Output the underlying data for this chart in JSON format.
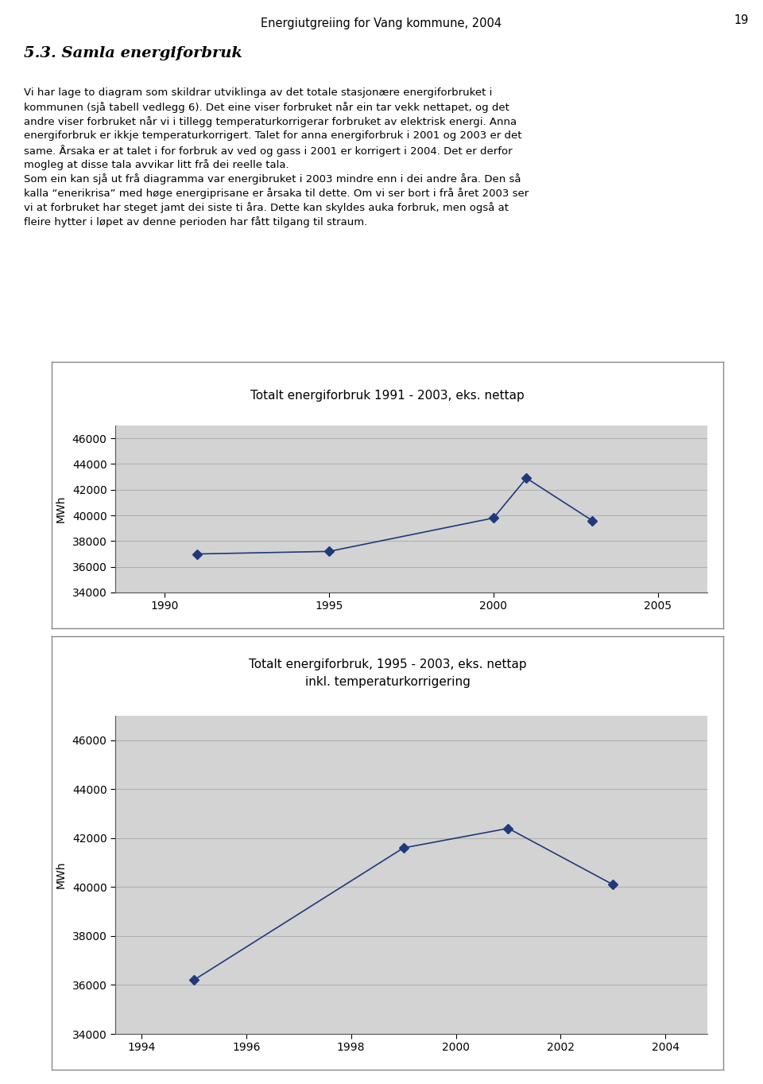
{
  "page_title": "Energiutgreiing for Vang kommune, 2004",
  "page_number": "19",
  "section_title": "5.3. Samla energiforbruk",
  "body_lines": [
    "Vi har lage to diagram som skildrar utviklinga av det totale stasjonære energiforbruket i",
    "kommunen (sjå tabell vedlegg 6). Det eine viser forbruket når ein tar vekk nettapet, og det",
    "andre viser forbruket når vi i tillegg temperaturkorrigerar forbruket av elektrisk energi. Anna",
    "energiforbruk er ikkje temperaturkorrigert. Talet for anna energiforbruk i 2001 og 2003 er det",
    "same. Årsaka er at talet i for forbruk av ved og gass i 2001 er korrigert i 2004. Det er derfor",
    "mogleg at disse tala avvikar litt frå dei reelle tala.",
    "Som ein kan sjå ut frå diagramma var energibruket i 2003 mindre enn i dei andre åra. Den så",
    "kalla “enerikrisa” med høge energiprisane er årsaka til dette. Om vi ser bort i frå året 2003 ser",
    "vi at forbruket har steget jamt dei siste ti åra. Dette kan skyldes auka forbruk, men også at",
    "fleire hytter i løpet av denne perioden har fått tilgang til straum."
  ],
  "chart1": {
    "title": "Totalt energiforbruk 1991 - 2003, eks. nettap",
    "ylabel": "MWh",
    "xlim": [
      1988.5,
      2006.5
    ],
    "ylim": [
      34000,
      47000
    ],
    "yticks": [
      34000,
      36000,
      38000,
      40000,
      42000,
      44000,
      46000
    ],
    "xticks": [
      1990,
      1995,
      2000,
      2005
    ],
    "x": [
      1991,
      1995,
      2000,
      2001,
      2003
    ],
    "y": [
      37000,
      37200,
      39800,
      42900,
      39600
    ],
    "line_color": "#1f3a7a",
    "marker": "D",
    "marker_size": 6,
    "bg_color": "#d3d3d3"
  },
  "chart2": {
    "title1": "Totalt energiforbruk, 1995 - 2003, eks. nettap",
    "title2": "inkl. temperaturkorrigering",
    "ylabel": "MWh",
    "xlim": [
      1993.5,
      2004.8
    ],
    "ylim": [
      34000,
      47000
    ],
    "yticks": [
      34000,
      36000,
      38000,
      40000,
      42000,
      44000,
      46000
    ],
    "xticks": [
      1994,
      1996,
      1998,
      2000,
      2002,
      2004
    ],
    "x": [
      1995,
      1999,
      2001,
      2003
    ],
    "y": [
      36200,
      41600,
      42400,
      40100
    ],
    "line_color": "#1f3a7a",
    "marker": "D",
    "marker_size": 6,
    "bg_color": "#d3d3d3"
  },
  "page_bg": "#ffffff",
  "grid_color": "#b0b0b0",
  "frame_color": "#888888",
  "text_color": "#000000"
}
